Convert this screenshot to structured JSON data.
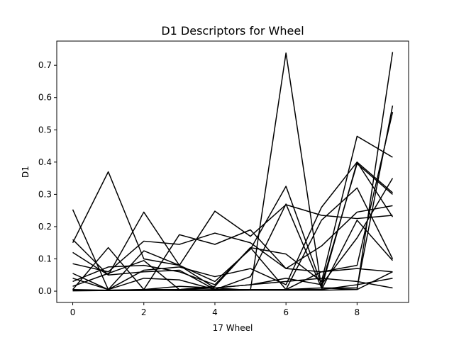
{
  "chart_data": {
    "type": "line",
    "title": "D1 Descriptors for Wheel",
    "xlabel": "17 Wheel",
    "ylabel": "D1",
    "x": [
      0,
      1,
      2,
      3,
      4,
      5,
      6,
      7,
      8,
      9
    ],
    "xlim": [
      -0.45,
      9.45
    ],
    "ylim": [
      -0.035,
      0.775
    ],
    "xticks": [
      0,
      2,
      4,
      6,
      8
    ],
    "yticks": [
      0.0,
      0.1,
      0.2,
      0.3,
      0.4,
      0.5,
      0.6,
      0.7
    ],
    "ytick_labels": [
      "0.0",
      "0.1",
      "0.2",
      "0.3",
      "0.4",
      "0.5",
      "0.6",
      "0.7"
    ],
    "grid": false,
    "line_color": "#000000",
    "series": [
      {
        "values": [
          0.253,
          0.005,
          0.125,
          0.08,
          0.01,
          0.003,
          0.738,
          0.01,
          0.005,
          0.741
        ]
      },
      {
        "values": [
          0.16,
          0.05,
          0.06,
          0.065,
          0.005,
          0.005,
          0.005,
          0.01,
          0.4,
          0.305
        ]
      },
      {
        "values": [
          0.15,
          0.37,
          0.1,
          0.08,
          0.03,
          0.13,
          0.325,
          0.02,
          0.395,
          0.3
        ]
      },
      {
        "values": [
          0.12,
          0.05,
          0.245,
          0.08,
          0.248,
          0.17,
          0.268,
          0.235,
          0.225,
          0.235
        ]
      },
      {
        "values": [
          0.005,
          0.135,
          0.005,
          0.175,
          0.145,
          0.19,
          0.07,
          0.06,
          0.08,
          0.555
        ]
      },
      {
        "values": [
          0.085,
          0.06,
          0.155,
          0.145,
          0.18,
          0.15,
          0.07,
          0.14,
          0.245,
          0.265
        ]
      },
      {
        "values": [
          0.055,
          0.005,
          0.04,
          0.035,
          0.005,
          0.045,
          0.27,
          0.01,
          0.01,
          0.575
        ]
      },
      {
        "values": [
          0.03,
          0.075,
          0.08,
          0.06,
          0.02,
          0.135,
          0.115,
          0.03,
          0.48,
          0.415
        ]
      },
      {
        "values": [
          0.04,
          0.005,
          0.065,
          0.075,
          0.045,
          0.07,
          0.02,
          0.26,
          0.4,
          0.23
        ]
      },
      {
        "values": [
          0.015,
          0.055,
          0.095,
          0.005,
          0.015,
          0.135,
          0.005,
          0.22,
          0.32,
          0.1
        ]
      },
      {
        "values": [
          0.003,
          0.003,
          0.005,
          0.005,
          0.01,
          0.02,
          0.04,
          0.02,
          0.165,
          0.35
        ]
      },
      {
        "values": [
          0.005,
          0.003,
          0.003,
          0.005,
          0.003,
          0.003,
          0.005,
          0.005,
          0.22,
          0.095
        ]
      },
      {
        "values": [
          0.002,
          0.002,
          0.003,
          0.003,
          0.005,
          0.005,
          0.005,
          0.06,
          0.07,
          0.06
        ]
      },
      {
        "values": [
          0.003,
          0.003,
          0.005,
          0.015,
          0.01,
          0.02,
          0.03,
          0.04,
          0.03,
          0.01
        ]
      },
      {
        "values": [
          0.001,
          0.002,
          0.002,
          0.003,
          0.003,
          0.005,
          0.005,
          0.005,
          0.02,
          0.04
        ]
      },
      {
        "values": [
          0.002,
          0.002,
          0.003,
          0.002,
          0.002,
          0.003,
          0.003,
          0.003,
          0.005,
          0.06
        ]
      }
    ]
  }
}
